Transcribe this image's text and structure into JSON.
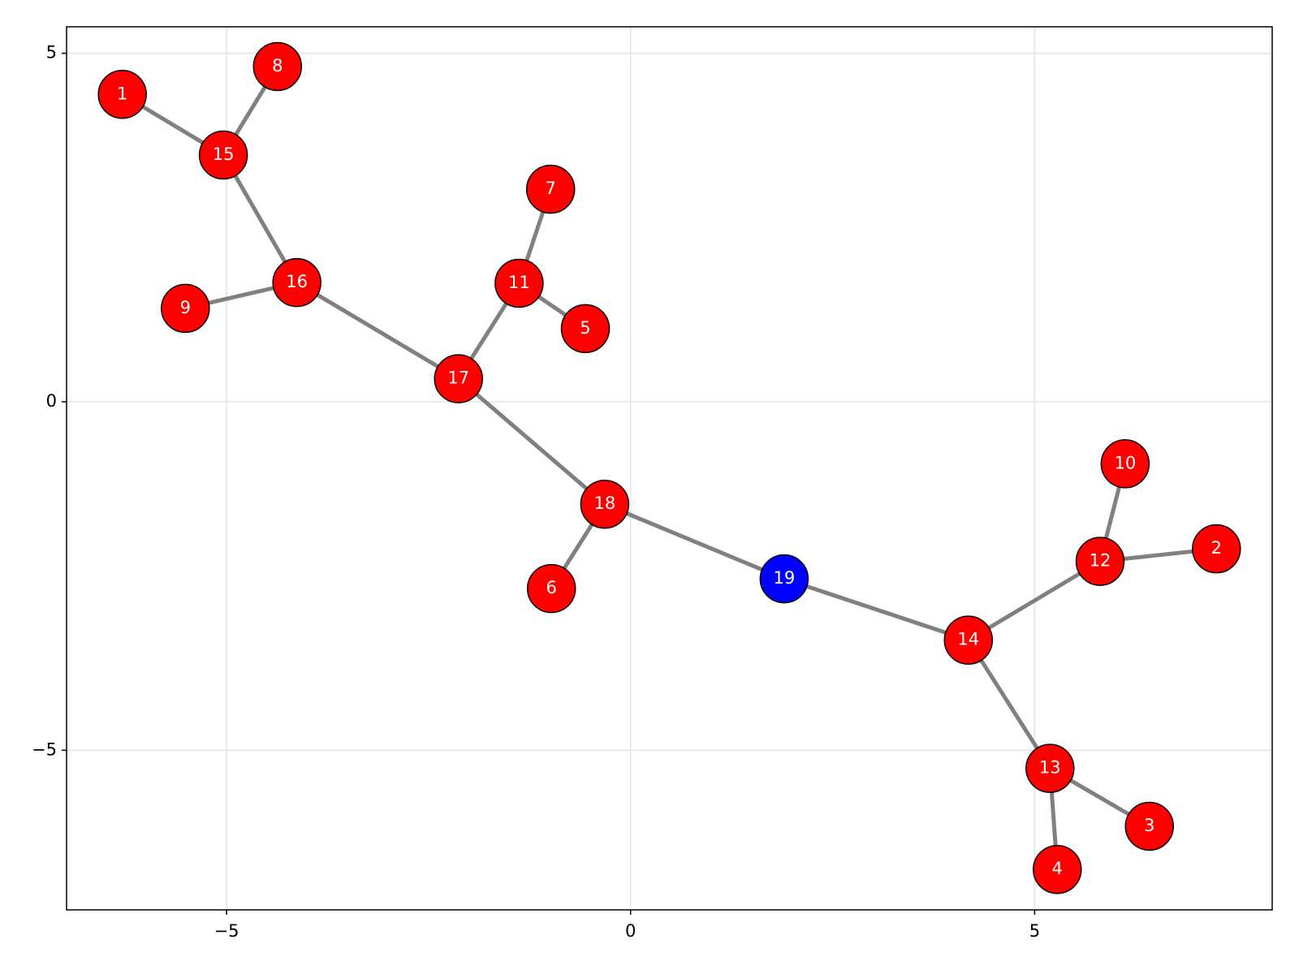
{
  "chart_data": {
    "type": "graph",
    "nodes": [
      {
        "label": "1",
        "x": -6.29,
        "y": 4.41,
        "color": "#ff0000"
      },
      {
        "label": "2",
        "x": 7.25,
        "y": -2.11,
        "color": "#ff0000"
      },
      {
        "label": "3",
        "x": 6.42,
        "y": -6.09,
        "color": "#ff0000"
      },
      {
        "label": "4",
        "x": 5.28,
        "y": -6.71,
        "color": "#ff0000"
      },
      {
        "label": "5",
        "x": -0.56,
        "y": 1.05,
        "color": "#ff0000"
      },
      {
        "label": "6",
        "x": -0.98,
        "y": -2.68,
        "color": "#ff0000"
      },
      {
        "label": "7",
        "x": -0.99,
        "y": 3.05,
        "color": "#ff0000"
      },
      {
        "label": "8",
        "x": -4.37,
        "y": 4.81,
        "color": "#ff0000"
      },
      {
        "label": "9",
        "x": -5.51,
        "y": 1.34,
        "color": "#ff0000"
      },
      {
        "label": "10",
        "x": 6.12,
        "y": -0.89,
        "color": "#ff0000"
      },
      {
        "label": "11",
        "x": -1.38,
        "y": 1.7,
        "color": "#ff0000"
      },
      {
        "label": "12",
        "x": 5.81,
        "y": -2.29,
        "color": "#ff0000"
      },
      {
        "label": "13",
        "x": 5.19,
        "y": -5.26,
        "color": "#ff0000"
      },
      {
        "label": "14",
        "x": 4.18,
        "y": -3.42,
        "color": "#ff0000"
      },
      {
        "label": "15",
        "x": -5.04,
        "y": 3.54,
        "color": "#ff0000"
      },
      {
        "label": "16",
        "x": -4.13,
        "y": 1.71,
        "color": "#ff0000"
      },
      {
        "label": "17",
        "x": -2.13,
        "y": 0.33,
        "color": "#ff0000"
      },
      {
        "label": "18",
        "x": -0.32,
        "y": -1.47,
        "color": "#ff0000"
      },
      {
        "label": "19",
        "x": 1.9,
        "y": -2.54,
        "color": "#0000ff"
      }
    ],
    "edges": [
      [
        0,
        14
      ],
      [
        7,
        14
      ],
      [
        14,
        15
      ],
      [
        8,
        15
      ],
      [
        15,
        16
      ],
      [
        16,
        10
      ],
      [
        10,
        6
      ],
      [
        10,
        4
      ],
      [
        16,
        17
      ],
      [
        17,
        5
      ],
      [
        17,
        18
      ],
      [
        18,
        13
      ],
      [
        13,
        11
      ],
      [
        11,
        9
      ],
      [
        11,
        1
      ],
      [
        13,
        12
      ],
      [
        12,
        2
      ],
      [
        12,
        3
      ]
    ],
    "edge_color": "#808080",
    "xlim": [
      -6.98,
      7.94
    ],
    "ylim": [
      -7.29,
      5.38
    ],
    "xticks": [
      {
        "value": -5,
        "label": "−5"
      },
      0,
      5
    ],
    "yticks": [
      {
        "value": -5,
        "label": "−5"
      },
      0,
      5
    ],
    "grid": true
  }
}
